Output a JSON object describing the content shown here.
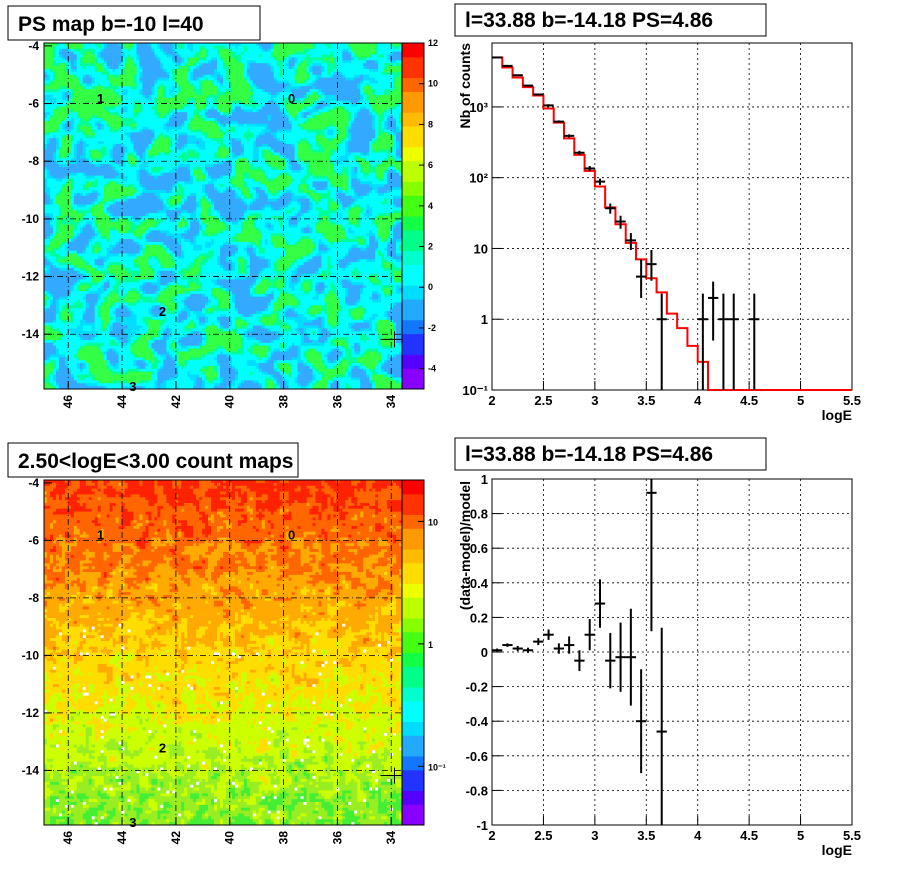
{
  "chart_data": [
    {
      "type": "heatmap",
      "title": "PS map b=-10 l=40",
      "x_ticks": [
        "46",
        "44",
        "42",
        "40",
        "38",
        "36",
        "34"
      ],
      "y_ticks": [
        "-4",
        "-6",
        "-8",
        "-10",
        "-12",
        "-14"
      ],
      "xlim": [
        46.9,
        33.6
      ],
      "ylim": [
        -15.9,
        -3.9
      ],
      "colorbar_ticks": [
        "12",
        "10",
        "8",
        "6",
        "4",
        "2",
        "0",
        "-2",
        "-4"
      ],
      "colorbar_range": [
        -5,
        12
      ],
      "source_labels": [
        {
          "text": "1",
          "l": 44.8,
          "b": -5.8
        },
        {
          "text": "0",
          "l": 37.7,
          "b": -5.8
        },
        {
          "text": "2",
          "l": 42.5,
          "b": -13.2
        },
        {
          "text": "3",
          "l": 43.6,
          "b": -15.8
        }
      ],
      "marker": {
        "l": 33.88,
        "b": -14.18
      },
      "colors": {
        "background": "#00ffff",
        "accent_green": "#33ff33",
        "accent_blue": "#3399ff"
      }
    },
    {
      "type": "line",
      "title": "l=33.88 b=-14.18 PS=4.86",
      "xlabel": "logE",
      "ylabel": "Nb of counts",
      "xlim": [
        2,
        5.5
      ],
      "ylim": [
        0.1,
        8000
      ],
      "log_y": true,
      "x_ticks": [
        "2",
        "2.5",
        "3",
        "3.5",
        "4",
        "4.5",
        "5",
        "5.5"
      ],
      "y_ticks": [
        {
          "v": 0.1,
          "label": "10⁻¹"
        },
        {
          "v": 1,
          "label": "1"
        },
        {
          "v": 10,
          "label": "10"
        },
        {
          "v": 100,
          "label": "10²"
        },
        {
          "v": 1000,
          "label": "10³"
        }
      ],
      "bin_width": 0.1,
      "model_x": [
        2.0,
        2.1,
        2.2,
        2.3,
        2.4,
        2.5,
        2.6,
        2.7,
        2.8,
        2.9,
        3.0,
        3.1,
        3.2,
        3.3,
        3.4,
        3.5,
        3.6,
        3.7,
        3.8,
        3.9,
        4.0,
        4.1
      ],
      "model": [
        5000,
        3600,
        2600,
        1900,
        1450,
        950,
        600,
        360,
        210,
        125,
        75,
        38,
        22,
        12,
        7,
        3.8,
        2.4,
        1.2,
        0.75,
        0.42,
        0.25,
        0.1
      ],
      "data_x": [
        2.05,
        2.15,
        2.25,
        2.35,
        2.45,
        2.55,
        2.65,
        2.75,
        2.85,
        2.95,
        3.05,
        3.15,
        3.25,
        3.35,
        3.45,
        3.55,
        3.65,
        4.05,
        4.15,
        4.25,
        4.35,
        4.55
      ],
      "data": [
        5000,
        3800,
        2800,
        2000,
        1500,
        1050,
        620,
        390,
        225,
        135,
        88,
        37,
        24,
        13,
        4,
        6,
        1,
        1,
        2,
        1,
        1,
        1
      ],
      "data_err_lo": [
        4900,
        3730,
        2740,
        1950,
        1460,
        1010,
        600,
        370,
        210,
        124,
        79,
        31,
        19,
        9.5,
        2,
        3.5,
        0.1,
        0.1,
        0.5,
        0.1,
        0.1,
        0.1
      ],
      "data_err_hi": [
        5100,
        3870,
        2860,
        2050,
        1540,
        1090,
        645,
        410,
        240,
        146,
        97,
        43,
        29,
        16.5,
        7,
        9.5,
        2.3,
        2.3,
        3.4,
        2.3,
        2.3,
        2.3
      ],
      "colors": {
        "model": "#ff0000",
        "data": "#000000"
      }
    },
    {
      "type": "heatmap",
      "title": "2.50<logE<3.00 count maps",
      "x_ticks": [
        "46",
        "44",
        "42",
        "40",
        "38",
        "36",
        "34"
      ],
      "y_ticks": [
        "-4",
        "-6",
        "-8",
        "-10",
        "-12",
        "-14"
      ],
      "xlim": [
        46.9,
        33.6
      ],
      "ylim": [
        -15.9,
        -3.9
      ],
      "colorbar_ticks": [
        "10",
        "1",
        "10⁻¹"
      ],
      "colorbar_log": true,
      "source_labels": [
        {
          "text": "1",
          "l": 44.8,
          "b": -5.8
        },
        {
          "text": "0",
          "l": 37.7,
          "b": -5.8
        },
        {
          "text": "2",
          "l": 42.5,
          "b": -13.2
        },
        {
          "text": "3",
          "l": 43.6,
          "b": -15.8
        }
      ],
      "marker": {
        "l": 33.88,
        "b": -14.18
      },
      "colors": {
        "top": "#ff3300",
        "middle": "#ffcc00",
        "bottom": "#88ee22"
      }
    },
    {
      "type": "scatter",
      "title": "l=33.88 b=-14.18 PS=4.86",
      "xlabel": "logE",
      "ylabel": "(data-model)/model",
      "xlim": [
        2,
        5.5
      ],
      "ylim": [
        -1,
        1
      ],
      "x_ticks": [
        "2",
        "2.5",
        "3",
        "3.5",
        "4",
        "4.5",
        "5",
        "5.5"
      ],
      "y_ticks": [
        "-1",
        "-0.8",
        "-0.6",
        "-0.4",
        "-0.2",
        "0",
        "0.2",
        "0.4",
        "0.6",
        "0.8",
        "1"
      ],
      "bin_width": 0.1,
      "x": [
        2.05,
        2.15,
        2.25,
        2.35,
        2.45,
        2.55,
        2.65,
        2.75,
        2.85,
        2.95,
        3.05,
        3.15,
        3.25,
        3.35,
        3.45,
        3.55,
        3.65
      ],
      "y": [
        0.01,
        0.04,
        0.02,
        0.01,
        0.06,
        0.1,
        0.02,
        0.04,
        -0.05,
        0.1,
        0.28,
        -0.05,
        -0.03,
        -0.03,
        -0.4,
        0.92,
        -0.46
      ],
      "err": [
        0.01,
        0.01,
        0.015,
        0.015,
        0.02,
        0.03,
        0.03,
        0.05,
        0.06,
        0.09,
        0.14,
        0.16,
        0.2,
        0.28,
        0.3,
        0.8,
        0.6
      ]
    }
  ]
}
